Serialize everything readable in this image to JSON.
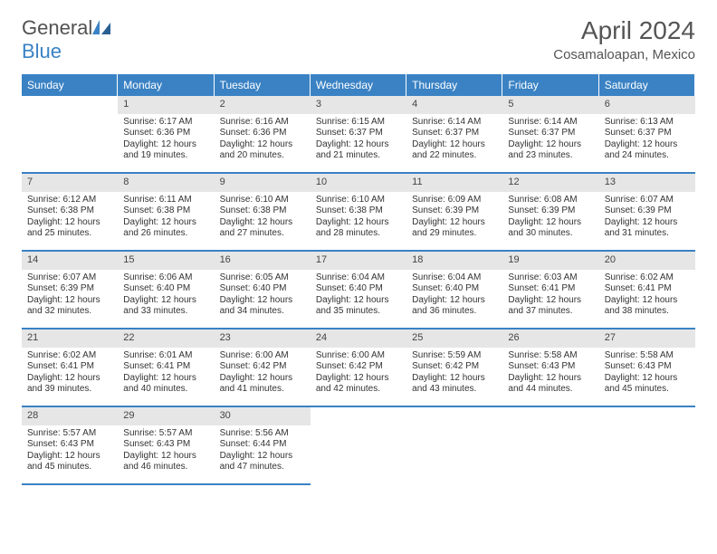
{
  "logo": {
    "text_a": "General",
    "text_b": "Blue"
  },
  "title": "April 2024",
  "location": "Cosamaloapan, Mexico",
  "weekdays": [
    "Sunday",
    "Monday",
    "Tuesday",
    "Wednesday",
    "Thursday",
    "Friday",
    "Saturday"
  ],
  "colors": {
    "header_bg": "#3a82c4",
    "header_text": "#ffffff",
    "daynum_bg": "#e6e6e6",
    "text": "#333333",
    "logo_gray": "#525252",
    "logo_blue": "#3a82c4"
  },
  "fontsize": {
    "title": 28,
    "subtitle": 15,
    "dayhead": 12,
    "daynum": 11,
    "body": 10
  },
  "days": [
    {
      "n": 1,
      "sunrise": "6:17 AM",
      "sunset": "6:36 PM",
      "daylight": "12 hours and 19 minutes."
    },
    {
      "n": 2,
      "sunrise": "6:16 AM",
      "sunset": "6:36 PM",
      "daylight": "12 hours and 20 minutes."
    },
    {
      "n": 3,
      "sunrise": "6:15 AM",
      "sunset": "6:37 PM",
      "daylight": "12 hours and 21 minutes."
    },
    {
      "n": 4,
      "sunrise": "6:14 AM",
      "sunset": "6:37 PM",
      "daylight": "12 hours and 22 minutes."
    },
    {
      "n": 5,
      "sunrise": "6:14 AM",
      "sunset": "6:37 PM",
      "daylight": "12 hours and 23 minutes."
    },
    {
      "n": 6,
      "sunrise": "6:13 AM",
      "sunset": "6:37 PM",
      "daylight": "12 hours and 24 minutes."
    },
    {
      "n": 7,
      "sunrise": "6:12 AM",
      "sunset": "6:38 PM",
      "daylight": "12 hours and 25 minutes."
    },
    {
      "n": 8,
      "sunrise": "6:11 AM",
      "sunset": "6:38 PM",
      "daylight": "12 hours and 26 minutes."
    },
    {
      "n": 9,
      "sunrise": "6:10 AM",
      "sunset": "6:38 PM",
      "daylight": "12 hours and 27 minutes."
    },
    {
      "n": 10,
      "sunrise": "6:10 AM",
      "sunset": "6:38 PM",
      "daylight": "12 hours and 28 minutes."
    },
    {
      "n": 11,
      "sunrise": "6:09 AM",
      "sunset": "6:39 PM",
      "daylight": "12 hours and 29 minutes."
    },
    {
      "n": 12,
      "sunrise": "6:08 AM",
      "sunset": "6:39 PM",
      "daylight": "12 hours and 30 minutes."
    },
    {
      "n": 13,
      "sunrise": "6:07 AM",
      "sunset": "6:39 PM",
      "daylight": "12 hours and 31 minutes."
    },
    {
      "n": 14,
      "sunrise": "6:07 AM",
      "sunset": "6:39 PM",
      "daylight": "12 hours and 32 minutes."
    },
    {
      "n": 15,
      "sunrise": "6:06 AM",
      "sunset": "6:40 PM",
      "daylight": "12 hours and 33 minutes."
    },
    {
      "n": 16,
      "sunrise": "6:05 AM",
      "sunset": "6:40 PM",
      "daylight": "12 hours and 34 minutes."
    },
    {
      "n": 17,
      "sunrise": "6:04 AM",
      "sunset": "6:40 PM",
      "daylight": "12 hours and 35 minutes."
    },
    {
      "n": 18,
      "sunrise": "6:04 AM",
      "sunset": "6:40 PM",
      "daylight": "12 hours and 36 minutes."
    },
    {
      "n": 19,
      "sunrise": "6:03 AM",
      "sunset": "6:41 PM",
      "daylight": "12 hours and 37 minutes."
    },
    {
      "n": 20,
      "sunrise": "6:02 AM",
      "sunset": "6:41 PM",
      "daylight": "12 hours and 38 minutes."
    },
    {
      "n": 21,
      "sunrise": "6:02 AM",
      "sunset": "6:41 PM",
      "daylight": "12 hours and 39 minutes."
    },
    {
      "n": 22,
      "sunrise": "6:01 AM",
      "sunset": "6:41 PM",
      "daylight": "12 hours and 40 minutes."
    },
    {
      "n": 23,
      "sunrise": "6:00 AM",
      "sunset": "6:42 PM",
      "daylight": "12 hours and 41 minutes."
    },
    {
      "n": 24,
      "sunrise": "6:00 AM",
      "sunset": "6:42 PM",
      "daylight": "12 hours and 42 minutes."
    },
    {
      "n": 25,
      "sunrise": "5:59 AM",
      "sunset": "6:42 PM",
      "daylight": "12 hours and 43 minutes."
    },
    {
      "n": 26,
      "sunrise": "5:58 AM",
      "sunset": "6:43 PM",
      "daylight": "12 hours and 44 minutes."
    },
    {
      "n": 27,
      "sunrise": "5:58 AM",
      "sunset": "6:43 PM",
      "daylight": "12 hours and 45 minutes."
    },
    {
      "n": 28,
      "sunrise": "5:57 AM",
      "sunset": "6:43 PM",
      "daylight": "12 hours and 45 minutes."
    },
    {
      "n": 29,
      "sunrise": "5:57 AM",
      "sunset": "6:43 PM",
      "daylight": "12 hours and 46 minutes."
    },
    {
      "n": 30,
      "sunrise": "5:56 AM",
      "sunset": "6:44 PM",
      "daylight": "12 hours and 47 minutes."
    }
  ],
  "first_weekday_offset": 1,
  "labels": {
    "sunrise": "Sunrise:",
    "sunset": "Sunset:",
    "daylight": "Daylight:"
  }
}
